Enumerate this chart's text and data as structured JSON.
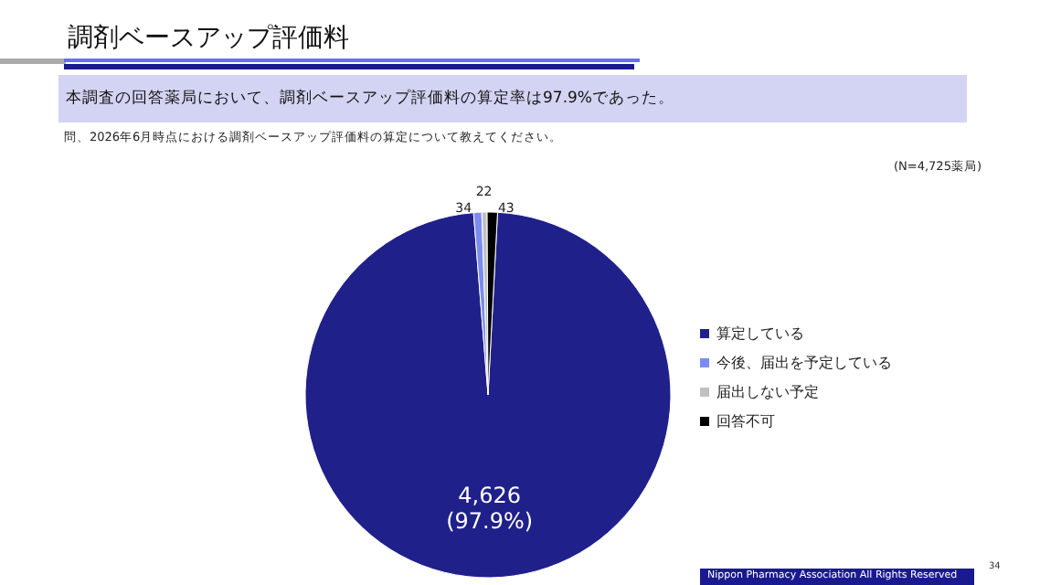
{
  "chart_data": {
    "type": "pie",
    "title": "調剤ベースアップ評価料",
    "subtitle": "本調査の回答薬局において、調剤ベースアップ評価料の算定率は97.9%であった。",
    "annotations": [
      "問、2026年6月時点における調剤ベースアップ評価料の算定について教えてください。",
      "(N=4,725薬局)",
      "Nippon Pharmacy Association All Rights Reserved",
      "34"
    ],
    "categories": [
      "算定している",
      "今後、届出を予定している",
      "届出しない予定",
      "回答不可"
    ],
    "values": [
      4626,
      34,
      22,
      43
    ],
    "value_labels": [
      "4,626\n(97.9%)",
      "34",
      "22",
      "43"
    ],
    "colors": [
      "#20208a",
      "#7b8cf0",
      "#c0c0c0",
      "#000000"
    ],
    "legend": "right"
  }
}
